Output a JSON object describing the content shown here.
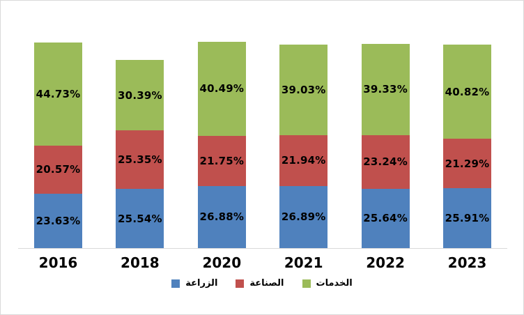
{
  "chart_data": {
    "type": "bar",
    "subtype": "stacked",
    "title": "",
    "xlabel": "",
    "ylabel": "",
    "ylim": [
      0,
      100
    ],
    "grid": false,
    "legend_position": "bottom",
    "value_format": "percent_2dp",
    "categories": [
      "2016",
      "2018",
      "2020",
      "2021",
      "2022",
      "2023"
    ],
    "series": [
      {
        "name": "الزراعة",
        "color": "#4F81BD",
        "values": [
          23.63,
          25.54,
          26.88,
          26.89,
          25.64,
          25.91
        ],
        "labels": [
          "23.63%",
          "25.54%",
          "26.88%",
          "26.89%",
          "25.64%",
          "25.91%"
        ]
      },
      {
        "name": "الصناعة",
        "color": "#C0504D",
        "values": [
          20.57,
          25.35,
          21.75,
          21.94,
          23.24,
          21.29
        ],
        "labels": [
          "20.57%",
          "25.35%",
          "21.75%",
          "21.94%",
          "23.24%",
          "21.29%"
        ]
      },
      {
        "name": "الخدمات",
        "color": "#9BBB59",
        "values": [
          44.73,
          30.39,
          40.49,
          39.03,
          39.33,
          40.82
        ],
        "labels": [
          "44.73%",
          "30.39%",
          "40.49%",
          "39.03%",
          "39.33%",
          "40.82%"
        ]
      }
    ],
    "colors": {
      "axis_line": "#d9d9d9",
      "chart_border": "#d9d9d9",
      "label_text": "#000000",
      "background": "#ffffff"
    }
  }
}
